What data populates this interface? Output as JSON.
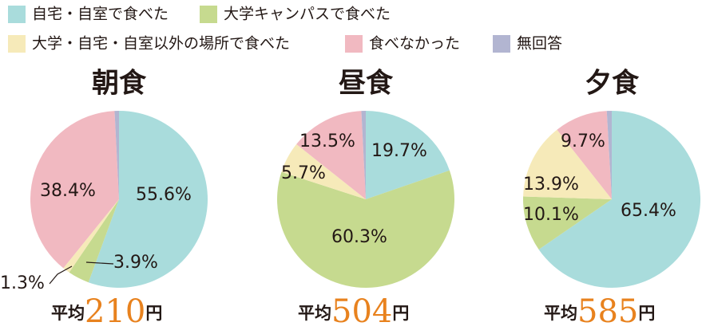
{
  "legend": {
    "labels": [
      "自宅・自室で食べた",
      "大学キャンパスで食べた",
      "大学・自宅・自室以外の場所で食べた",
      "食べなかった",
      "無回答"
    ],
    "colors": [
      "#a9dcdc",
      "#c6da8f",
      "#f6eab9",
      "#f1b9c1",
      "#b2b5d1"
    ]
  },
  "chart_data": [
    {
      "type": "pie",
      "title": "朝食",
      "values": [
        55.6,
        3.9,
        1.3,
        38.4,
        0.8
      ],
      "value_labels": [
        "55.6%",
        "3.9%",
        "1.3%",
        "38.4%",
        null
      ],
      "average_label": "平均",
      "average": "210",
      "average_unit": "円"
    },
    {
      "type": "pie",
      "title": "昼食",
      "values": [
        19.7,
        60.3,
        5.7,
        13.5,
        0.8
      ],
      "value_labels": [
        "19.7%",
        "60.3%",
        "5.7%",
        "13.5%",
        null
      ],
      "average_label": "平均",
      "average": "504",
      "average_unit": "円"
    },
    {
      "type": "pie",
      "title": "夕食",
      "values": [
        65.4,
        10.1,
        13.9,
        9.7,
        0.9
      ],
      "value_labels": [
        "65.4%",
        "10.1%",
        "13.9%",
        "9.7%",
        null
      ],
      "average_label": "平均",
      "average": "585",
      "average_unit": "円"
    }
  ]
}
